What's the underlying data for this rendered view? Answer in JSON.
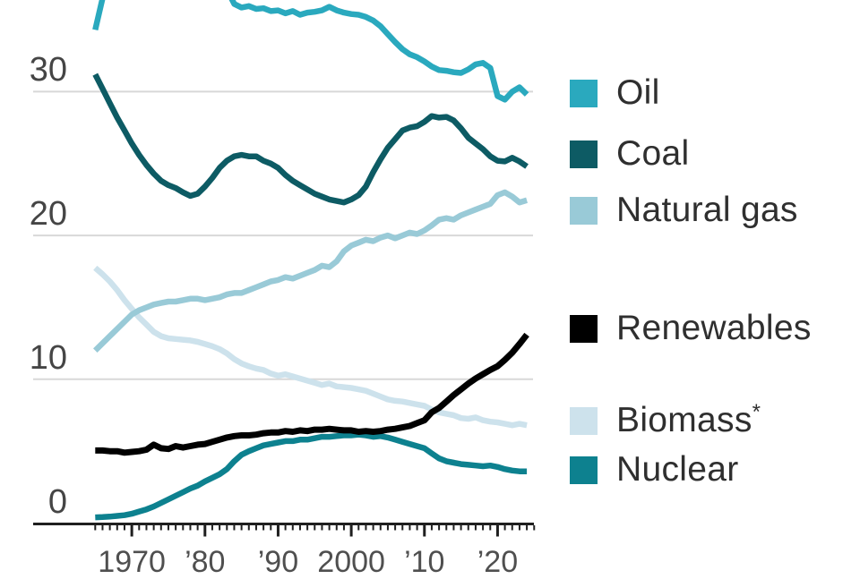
{
  "axes": {
    "y_ticks": [
      "30",
      "20",
      "10",
      "0"
    ],
    "y_gridline_values": [
      30,
      20,
      10
    ],
    "y_baseline_value": 0,
    "x_tick_labels": [
      "1970",
      "’80",
      "’90",
      "2000",
      "’10",
      "’20"
    ],
    "x_tick_years": [
      1970,
      1980,
      1990,
      2000,
      2010,
      2020
    ],
    "minor_tick_step_years": 1
  },
  "legend": {
    "items": [
      {
        "label": "Oil",
        "sup": "",
        "color": "#2aa9be"
      },
      {
        "label": "Coal",
        "sup": "",
        "color": "#0d5b64"
      },
      {
        "label": "Natural gas",
        "sup": "",
        "color": "#99cad7"
      },
      {
        "label": "Renewables",
        "sup": "",
        "color": "#000000"
      },
      {
        "label": "Biomass",
        "sup": "*",
        "color": "#cde2ec"
      },
      {
        "label": "Nuclear",
        "sup": "",
        "color": "#0d818f"
      }
    ]
  },
  "colors": {
    "gridline": "#d8d8d8",
    "axis": "#1f1f1f",
    "tick": "#1f1f1f",
    "background": "#ffffff"
  },
  "chart_data": {
    "type": "line",
    "x_range": [
      1965,
      2025
    ],
    "ylim_visible": [
      0,
      36.3
    ],
    "grid": "horizontal-only",
    "legend_position": "right",
    "note": "Top of chart is cropped; Oil line exceeds visible area ~1966-1984",
    "years": [
      1965,
      1966,
      1967,
      1968,
      1969,
      1970,
      1971,
      1972,
      1973,
      1974,
      1975,
      1976,
      1977,
      1978,
      1979,
      1980,
      1981,
      1982,
      1983,
      1984,
      1985,
      1986,
      1987,
      1988,
      1989,
      1990,
      1991,
      1992,
      1993,
      1994,
      1995,
      1996,
      1997,
      1998,
      1999,
      2000,
      2001,
      2002,
      2003,
      2004,
      2005,
      2006,
      2007,
      2008,
      2009,
      2010,
      2011,
      2012,
      2013,
      2014,
      2015,
      2016,
      2017,
      2018,
      2019,
      2020,
      2021,
      2022,
      2023,
      2024
    ],
    "series": [
      {
        "name": "Biomass",
        "color": "#cde2ec",
        "width": 6.5,
        "values": [
          17.75,
          17.3,
          16.8,
          16.2,
          15.5,
          14.9,
          14.3,
          13.8,
          13.3,
          13.0,
          12.85,
          12.8,
          12.75,
          12.7,
          12.6,
          12.45,
          12.3,
          12.1,
          11.8,
          11.4,
          11.1,
          10.9,
          10.75,
          10.65,
          10.4,
          10.25,
          10.35,
          10.2,
          10.05,
          9.9,
          9.75,
          9.6,
          9.7,
          9.5,
          9.45,
          9.4,
          9.3,
          9.2,
          9.0,
          8.8,
          8.6,
          8.5,
          8.45,
          8.35,
          8.25,
          8.15,
          7.9,
          7.7,
          7.6,
          7.5,
          7.3,
          7.25,
          7.35,
          7.15,
          7.05,
          7.0,
          6.9,
          6.8,
          6.9,
          6.8
        ]
      },
      {
        "name": "Natural gas",
        "color": "#99cad7",
        "width": 6.5,
        "values": [
          12.0,
          12.5,
          13.0,
          13.5,
          14.0,
          14.5,
          14.8,
          15.0,
          15.2,
          15.3,
          15.4,
          15.4,
          15.5,
          15.6,
          15.6,
          15.5,
          15.6,
          15.7,
          15.9,
          16.0,
          16.0,
          16.2,
          16.4,
          16.6,
          16.8,
          16.9,
          17.1,
          17.0,
          17.2,
          17.4,
          17.6,
          17.9,
          17.8,
          18.2,
          18.9,
          19.3,
          19.5,
          19.7,
          19.6,
          19.85,
          20.0,
          19.8,
          20.0,
          20.2,
          20.1,
          20.35,
          20.7,
          21.1,
          21.2,
          21.1,
          21.4,
          21.6,
          21.8,
          22.0,
          22.2,
          22.8,
          23.0,
          22.7,
          22.3,
          22.45
        ]
      },
      {
        "name": "Coal",
        "color": "#0d5b64",
        "width": 6.5,
        "values": [
          31.2,
          30.2,
          29.2,
          28.2,
          27.3,
          26.4,
          25.6,
          24.9,
          24.3,
          23.8,
          23.5,
          23.3,
          23.0,
          22.75,
          22.9,
          23.4,
          24.0,
          24.7,
          25.2,
          25.5,
          25.6,
          25.5,
          25.5,
          25.2,
          25.0,
          24.7,
          24.2,
          23.8,
          23.5,
          23.2,
          22.9,
          22.7,
          22.5,
          22.4,
          22.3,
          22.5,
          22.8,
          23.4,
          24.4,
          25.3,
          26.1,
          26.7,
          27.3,
          27.5,
          27.6,
          27.9,
          28.3,
          28.2,
          28.25,
          28.0,
          27.45,
          26.8,
          26.4,
          26.0,
          25.5,
          25.2,
          25.15,
          25.4,
          25.15,
          24.8
        ]
      },
      {
        "name": "Oil",
        "color": "#2aa9be",
        "width": 6.5,
        "values": [
          34.3,
          36.5,
          38.5,
          39.5,
          40.5,
          41.0,
          41.5,
          42.0,
          42.5,
          41.5,
          41.0,
          41.5,
          41.0,
          40.5,
          39.5,
          38.8,
          38.2,
          37.6,
          37.1,
          36.1,
          35.85,
          35.95,
          35.75,
          35.8,
          35.6,
          35.65,
          35.45,
          35.6,
          35.35,
          35.5,
          35.55,
          35.65,
          35.9,
          35.65,
          35.5,
          35.4,
          35.35,
          35.2,
          34.95,
          34.55,
          34.0,
          33.45,
          32.95,
          32.6,
          32.4,
          32.1,
          31.75,
          31.5,
          31.45,
          31.35,
          31.3,
          31.55,
          31.9,
          32.0,
          31.65,
          29.7,
          29.45,
          30.0,
          30.3,
          29.8
        ]
      },
      {
        "name": "Nuclear",
        "color": "#0d818f",
        "width": 6.5,
        "values": [
          0.4,
          0.42,
          0.45,
          0.5,
          0.55,
          0.65,
          0.8,
          0.95,
          1.15,
          1.4,
          1.65,
          1.9,
          2.15,
          2.4,
          2.6,
          2.9,
          3.15,
          3.4,
          3.75,
          4.3,
          4.75,
          5.0,
          5.2,
          5.4,
          5.5,
          5.6,
          5.7,
          5.7,
          5.8,
          5.8,
          5.9,
          6.0,
          6.0,
          6.05,
          6.1,
          6.1,
          6.15,
          6.1,
          6.0,
          6.05,
          5.95,
          5.8,
          5.65,
          5.5,
          5.35,
          5.2,
          4.85,
          4.5,
          4.3,
          4.2,
          4.1,
          4.05,
          4.0,
          3.95,
          4.0,
          3.9,
          3.75,
          3.65,
          3.6,
          3.6
        ]
      },
      {
        "name": "Renewables",
        "color": "#000000",
        "width": 7,
        "values": [
          5.05,
          5.05,
          5.0,
          5.0,
          4.9,
          4.95,
          5.0,
          5.1,
          5.45,
          5.2,
          5.15,
          5.35,
          5.25,
          5.35,
          5.45,
          5.5,
          5.65,
          5.8,
          5.95,
          6.05,
          6.1,
          6.1,
          6.15,
          6.25,
          6.3,
          6.3,
          6.4,
          6.35,
          6.45,
          6.4,
          6.5,
          6.5,
          6.55,
          6.5,
          6.45,
          6.45,
          6.35,
          6.4,
          6.35,
          6.4,
          6.5,
          6.55,
          6.65,
          6.75,
          6.95,
          7.15,
          7.7,
          8.0,
          8.45,
          8.9,
          9.3,
          9.7,
          10.05,
          10.35,
          10.65,
          10.9,
          11.35,
          11.85,
          12.45,
          13.1
        ]
      }
    ]
  }
}
